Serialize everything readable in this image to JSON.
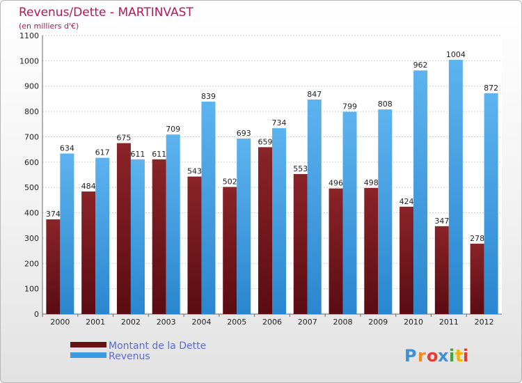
{
  "chart_data": {
    "type": "bar",
    "title": "Revenus/Dette - MARTINVAST",
    "subtitle": "(en milliers d'€)",
    "categories": [
      "2000",
      "2001",
      "2002",
      "2003",
      "2004",
      "2005",
      "2006",
      "2007",
      "2008",
      "2009",
      "2010",
      "2011",
      "2012"
    ],
    "series": [
      {
        "name": "Montant de la Dette",
        "values": [
          374,
          484,
          675,
          611,
          543,
          502,
          659,
          553,
          496,
          498,
          424,
          347,
          278
        ],
        "color": "#7a1a1f"
      },
      {
        "name": "Revenus",
        "values": [
          634,
          617,
          611,
          709,
          839,
          693,
          734,
          847,
          799,
          808,
          962,
          1004,
          872
        ],
        "color": "#3b9be0"
      }
    ],
    "ylim": [
      0,
      1100
    ],
    "yticks": [
      0,
      100,
      200,
      300,
      400,
      500,
      600,
      700,
      800,
      900,
      1000,
      1100
    ],
    "grid": true,
    "legend": "bottom-left"
  },
  "brand": {
    "letters": [
      "P",
      "r",
      "o",
      "x",
      "i",
      "t",
      "i"
    ],
    "colors": [
      "#3d8fd6",
      "#f08a1e",
      "#e63c2f",
      "#3d8fd6",
      "#3aaa35",
      "#f4b400",
      "#e63c2f"
    ]
  }
}
